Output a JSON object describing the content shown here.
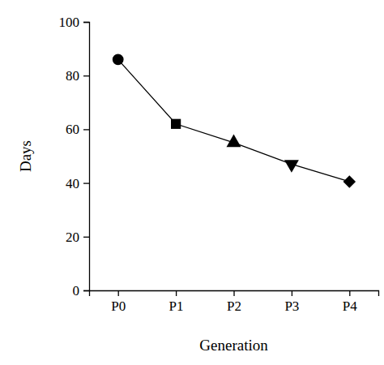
{
  "chart_data": {
    "type": "line",
    "xlabel": "Generation",
    "ylabel": "Days",
    "categories": [
      "P0",
      "P1",
      "P2",
      "P3",
      "P4"
    ],
    "series": [
      {
        "color": "#000000",
        "values": [
          86,
          62,
          55,
          47,
          40.5
        ],
        "marker": [
          "circle",
          "square",
          "triangle",
          "triangle-down",
          "diamond"
        ],
        "line_style": "solid"
      }
    ],
    "ylim": [
      0,
      100
    ],
    "yticks": [
      0,
      20,
      40,
      60,
      80,
      100
    ],
    "grid": false
  }
}
